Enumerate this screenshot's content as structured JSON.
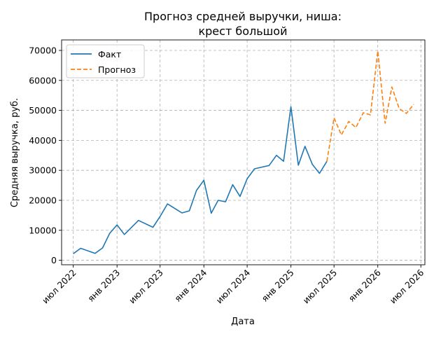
{
  "chart_data": {
    "type": "line",
    "title_lines": [
      "Прогноз средней выручки, ниша:",
      "крест большой"
    ],
    "xlabel": "Дата",
    "ylabel": "Средняя выручка, руб.",
    "ylim": [
      -1500,
      73500
    ],
    "y_ticks": [
      0,
      10000,
      20000,
      30000,
      40000,
      50000,
      60000,
      70000
    ],
    "y_tick_labels": [
      "0",
      "10000",
      "20000",
      "30000",
      "40000",
      "50000",
      "60000",
      "70000"
    ],
    "xlim": [
      "2022-05-13",
      "2026-07-18"
    ],
    "x_ticks": [
      "2022-07-01",
      "2023-01-01",
      "2023-07-01",
      "2024-01-01",
      "2024-07-01",
      "2025-01-01",
      "2025-07-01",
      "2026-01-01",
      "2026-07-01"
    ],
    "x_tick_labels": [
      "июл 2022",
      "янв 2023",
      "июл 2023",
      "янв 2024",
      "июл 2024",
      "янв 2025",
      "июл 2025",
      "янв 2026",
      "июл 2026"
    ],
    "grid": true,
    "legend_position": "top-left",
    "series": [
      {
        "name": "Факт",
        "style": "solid",
        "color": "#1f77b4",
        "points": [
          [
            "2022-07-01",
            2200
          ],
          [
            "2022-08-01",
            4000
          ],
          [
            "2022-10-01",
            2300
          ],
          [
            "2022-11-01",
            4100
          ],
          [
            "2022-12-01",
            9000
          ],
          [
            "2023-01-01",
            11800
          ],
          [
            "2023-02-01",
            8600
          ],
          [
            "2023-04-01",
            13300
          ],
          [
            "2023-06-01",
            11000
          ],
          [
            "2023-07-01",
            14600
          ],
          [
            "2023-08-01",
            18800
          ],
          [
            "2023-10-01",
            15800
          ],
          [
            "2023-11-01",
            16500
          ],
          [
            "2023-12-01",
            23300
          ],
          [
            "2024-01-01",
            26700
          ],
          [
            "2024-02-01",
            15700
          ],
          [
            "2024-03-01",
            20000
          ],
          [
            "2024-04-01",
            19500
          ],
          [
            "2024-05-01",
            25200
          ],
          [
            "2024-06-01",
            21300
          ],
          [
            "2024-07-01",
            27200
          ],
          [
            "2024-08-01",
            30500
          ],
          [
            "2024-10-01",
            31600
          ],
          [
            "2024-11-01",
            35000
          ],
          [
            "2024-12-01",
            33000
          ],
          [
            "2025-01-01",
            51200
          ],
          [
            "2025-02-01",
            31700
          ],
          [
            "2025-03-01",
            38000
          ],
          [
            "2025-04-01",
            32000
          ],
          [
            "2025-05-01",
            29000
          ],
          [
            "2025-06-01",
            33000
          ]
        ]
      },
      {
        "name": "Прогноз",
        "style": "dashed",
        "color": "#ff7f0e",
        "points": [
          [
            "2025-06-01",
            33000
          ],
          [
            "2025-07-01",
            47500
          ],
          [
            "2025-08-01",
            41800
          ],
          [
            "2025-09-01",
            46300
          ],
          [
            "2025-10-01",
            44300
          ],
          [
            "2025-11-01",
            49200
          ],
          [
            "2025-12-01",
            48500
          ],
          [
            "2026-01-01",
            69800
          ],
          [
            "2026-02-01",
            45700
          ],
          [
            "2026-03-01",
            57800
          ],
          [
            "2026-04-01",
            50600
          ],
          [
            "2026-05-01",
            49000
          ],
          [
            "2026-06-01",
            52000
          ]
        ]
      }
    ]
  }
}
